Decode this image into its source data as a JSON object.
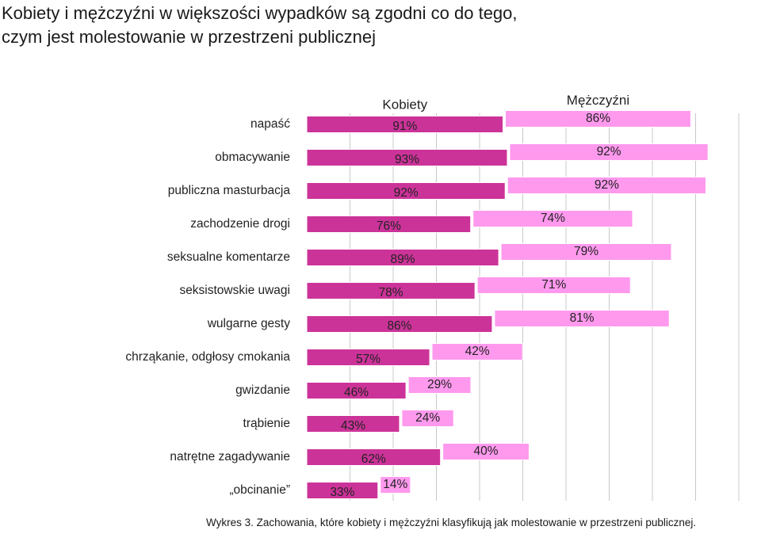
{
  "title_line1": "Kobiety i mężczyźni w większości wypadków są zgodni co do tego,",
  "title_line2": "czym jest molestowanie w przestrzeni publicznej",
  "caption": "Wykres 3. Zachowania, które kobiety i mężczyźni klasyfikują jak molestowanie w przestrzeni publicznej.",
  "colors": {
    "women": "#cc3399",
    "women_border": "#ffffff",
    "men": "#ff99ee",
    "men_border": "#ffffff",
    "grid": "#c8c8c8"
  },
  "chart_data": {
    "type": "bar",
    "orientation": "horizontal",
    "stacked": true,
    "grid": true,
    "categories": [
      "napaść",
      "obmacywanie",
      "publiczna masturbacja",
      "zachodzenie drogi",
      "seksualne komentarze",
      "seksistowskie uwagi",
      "wulgarne gesty",
      "chrząkanie, odgłosy cmokania",
      "gwizdanie",
      "trąbienie",
      "natrętne zagadywanie",
      "„obcinanie”"
    ],
    "series": [
      {
        "name": "Kobiety",
        "values": [
          91,
          93,
          92,
          76,
          89,
          78,
          86,
          57,
          46,
          43,
          62,
          33
        ]
      },
      {
        "name": "Mężczyźni",
        "values": [
          86,
          92,
          92,
          74,
          79,
          71,
          81,
          42,
          29,
          24,
          40,
          14
        ]
      }
    ],
    "value_labels": {
      "Kobiety": [
        "91%",
        "93%",
        "92%",
        "76%",
        "89%",
        "78%",
        "86%",
        "57%",
        "46%",
        "43%",
        "62%",
        "33%"
      ],
      "Mężczyźni": [
        "86%",
        "92%",
        "92%",
        "74%",
        "79%",
        "71%",
        "81%",
        "42%",
        "29%",
        "24%",
        "40%",
        "14%"
      ]
    }
  }
}
